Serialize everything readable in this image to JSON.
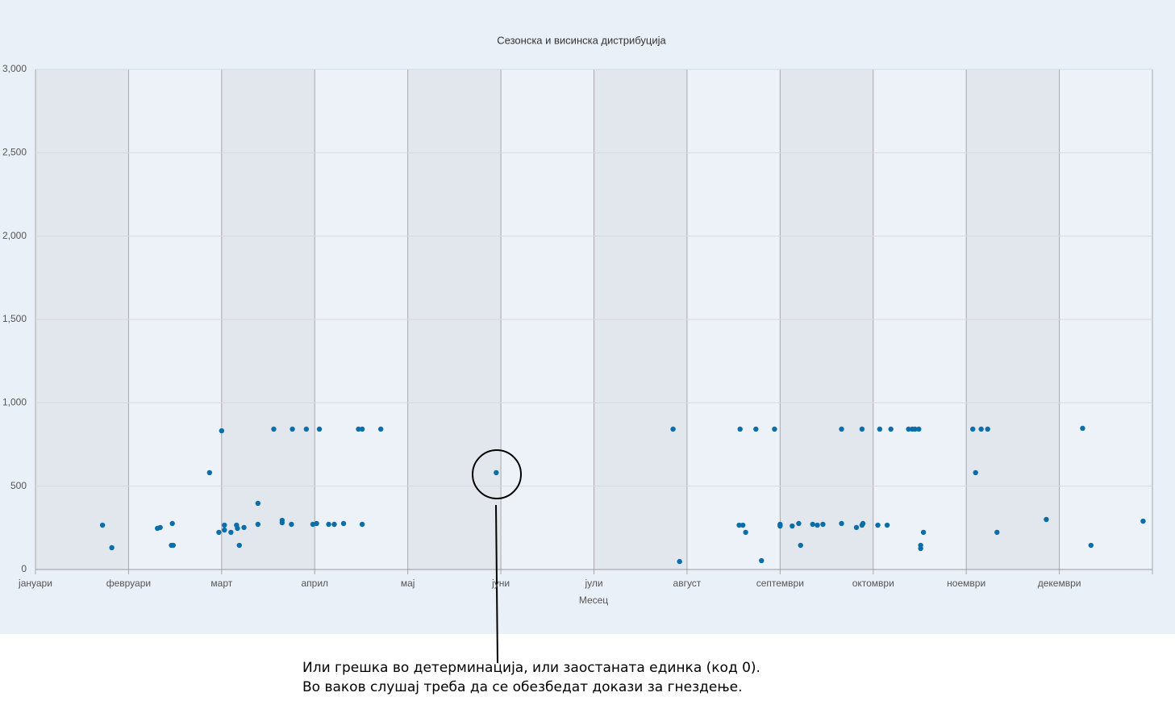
{
  "chart_data": {
    "type": "scatter",
    "title": "Сезонска и висинска дистрибуција",
    "x_label": "Месец",
    "xlim": [
      0,
      12
    ],
    "xticks": [
      {
        "value": 0,
        "label": "јануари"
      },
      {
        "value": 1,
        "label": "февруари"
      },
      {
        "value": 2,
        "label": "март"
      },
      {
        "value": 3,
        "label": "април"
      },
      {
        "value": 4,
        "label": "мај"
      },
      {
        "value": 5,
        "label": "јуни"
      },
      {
        "value": 6,
        "label": "јули"
      },
      {
        "value": 7,
        "label": "август"
      },
      {
        "value": 8,
        "label": "септември"
      },
      {
        "value": 9,
        "label": "октомври"
      },
      {
        "value": 10,
        "label": "ноември"
      },
      {
        "value": 11,
        "label": "декември"
      }
    ],
    "ylim": [
      0,
      3000
    ],
    "yticks": [
      0,
      500,
      {
        "value": 1000,
        "label": "1,000"
      },
      {
        "value": 1500,
        "label": "1,500"
      },
      {
        "value": 2000,
        "label": "2,000"
      },
      {
        "value": 2500,
        "label": "2,500"
      },
      {
        "value": 3000,
        "label": "3,000"
      }
    ],
    "grid": true,
    "alternate_bands": true,
    "color": "#0b6ea8",
    "x": [
      0.72,
      0.82,
      1.31,
      1.34,
      1.47,
      1.46,
      1.48,
      1.87,
      1.97,
      2.0,
      2.03,
      2.03,
      2.1,
      2.16,
      2.17,
      2.19,
      2.24,
      2.39,
      2.39,
      2.56,
      2.65,
      2.65,
      2.76,
      2.75,
      2.91,
      2.98,
      3.02,
      3.05,
      3.15,
      3.21,
      3.31,
      3.47,
      3.51,
      3.51,
      3.71,
      4.95,
      6.85,
      6.92,
      7.57,
      7.56,
      7.6,
      7.63,
      7.74,
      7.8,
      7.94,
      8.0,
      8.0,
      8.13,
      8.2,
      8.22,
      8.35,
      8.4,
      8.46,
      8.66,
      8.66,
      8.82,
      8.88,
      8.88,
      8.89,
      9.05,
      9.07,
      9.15,
      9.19,
      9.38,
      9.42,
      9.45,
      9.49,
      9.51,
      9.51,
      9.54,
      10.07,
      10.1,
      10.16,
      10.23,
      10.33,
      10.86,
      11.25,
      11.34,
      11.9
    ],
    "values": [
      266,
      131,
      247,
      252,
      276,
      145,
      145,
      581,
      223,
      832,
      266,
      237,
      223,
      266,
      247,
      145,
      252,
      397,
      271,
      842,
      295,
      281,
      842,
      271,
      842,
      271,
      276,
      842,
      271,
      271,
      276,
      842,
      842,
      271,
      842,
      581,
      842,
      48,
      842,
      266,
      266,
      223,
      842,
      53,
      842,
      271,
      261,
      261,
      276,
      145,
      271,
      266,
      271,
      842,
      276,
      252,
      842,
      266,
      276,
      266,
      842,
      266,
      842,
      842,
      842,
      842,
      842,
      145,
      126,
      223,
      842,
      581,
      842,
      842,
      223,
      300,
      847,
      145,
      290
    ],
    "annotation": [
      "Или грешка во детерминација, или заостаната единка (код 0).",
      "Во ваков слушај треба да се обезбедат докази за гнездење."
    ]
  }
}
